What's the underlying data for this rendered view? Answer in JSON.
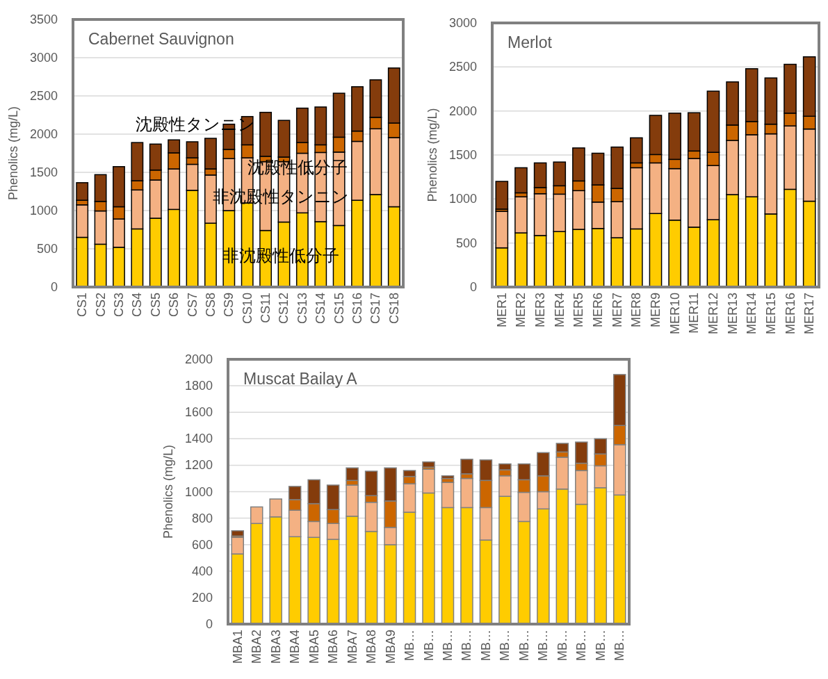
{
  "chart_data": [
    {
      "type": "bar",
      "stacked": true,
      "title": "Cabernet Sauvignon",
      "ylabel": "Phenolics (mg/L)",
      "grid": "y",
      "ylim": [
        0,
        3500
      ],
      "yticks": [
        0,
        500,
        1000,
        1500,
        2000,
        2500,
        3000,
        3500
      ],
      "categories": [
        "CS1",
        "CS2",
        "CS3",
        "CS4",
        "CS5",
        "CS6",
        "CS7",
        "CS8",
        "CS9",
        "CS10",
        "CS11",
        "CS12",
        "CS13",
        "CS14",
        "CS15",
        "CS16",
        "CS17",
        "CS18"
      ],
      "series": [
        {
          "name": "非沈殿性低分子",
          "color": "#ffcc00",
          "values": [
            650,
            560,
            520,
            760,
            900,
            1015,
            1265,
            835,
            1000,
            1100,
            740,
            850,
            970,
            855,
            805,
            1135,
            1210,
            1050
          ]
        },
        {
          "name": "非沈殿性タンニン",
          "color": "#f4b183",
          "values": [
            425,
            435,
            370,
            510,
            500,
            530,
            340,
            630,
            680,
            590,
            900,
            790,
            780,
            905,
            960,
            770,
            860,
            905
          ]
        },
        {
          "name": "沈殿性低分子",
          "color": "#cc6600",
          "values": [
            60,
            125,
            160,
            120,
            130,
            210,
            85,
            80,
            120,
            170,
            70,
            60,
            140,
            100,
            195,
            135,
            150,
            190
          ]
        },
        {
          "name": "沈殿性タンニン",
          "color": "#843c0c",
          "values": [
            230,
            350,
            525,
            500,
            340,
            170,
            210,
            400,
            330,
            370,
            575,
            480,
            450,
            495,
            575,
            580,
            490,
            720
          ]
        }
      ]
    },
    {
      "type": "bar",
      "stacked": true,
      "title": "Merlot",
      "ylabel": "Phenolics (mg/L)",
      "grid": "y",
      "ylim": [
        0,
        3000
      ],
      "yticks": [
        0,
        500,
        1000,
        1500,
        2000,
        2500,
        3000
      ],
      "categories": [
        "MER1",
        "MER2",
        "MER3",
        "MER4",
        "MER5",
        "MER6",
        "MER7",
        "MER8",
        "MER9",
        "MER10",
        "MER11",
        "MER12",
        "MER13",
        "MER14",
        "MER15",
        "MER16",
        "MER17"
      ],
      "series": [
        {
          "color": "#ffcc00",
          "values": [
            445,
            615,
            585,
            630,
            655,
            665,
            560,
            660,
            835,
            760,
            680,
            765,
            1050,
            1025,
            830,
            1110,
            975
          ]
        },
        {
          "color": "#f4b183",
          "values": [
            415,
            410,
            475,
            425,
            440,
            300,
            410,
            695,
            575,
            585,
            780,
            615,
            615,
            705,
            910,
            720,
            820
          ]
        },
        {
          "color": "#cc6600",
          "values": [
            25,
            45,
            70,
            95,
            110,
            195,
            150,
            55,
            95,
            105,
            85,
            150,
            175,
            150,
            110,
            145,
            145
          ]
        },
        {
          "color": "#843c0c",
          "values": [
            315,
            285,
            280,
            270,
            375,
            360,
            470,
            285,
            445,
            525,
            435,
            695,
            490,
            600,
            525,
            555,
            675
          ]
        }
      ]
    },
    {
      "type": "bar",
      "stacked": true,
      "title": "Muscat Bailay A",
      "ylabel": "Phenolics (mg/L)",
      "grid": "y",
      "ylim": [
        0,
        2000
      ],
      "yticks": [
        0,
        200,
        400,
        600,
        800,
        1000,
        1200,
        1400,
        1600,
        1800,
        2000
      ],
      "categories": [
        "MBA1",
        "MBA2",
        "MBA3",
        "MBA4",
        "MBA5",
        "MBA6",
        "MBA7",
        "MBA8",
        "MBA9",
        "MB…",
        "MB…",
        "MB…",
        "MB…",
        "MB…",
        "MB…",
        "MB…",
        "MB…",
        "MB…",
        "MB…",
        "MB…",
        "MB…"
      ],
      "series": [
        {
          "color": "#ffcc00",
          "values": [
            530,
            760,
            810,
            660,
            655,
            640,
            815,
            700,
            600,
            845,
            990,
            880,
            880,
            635,
            965,
            775,
            870,
            1020,
            905,
            1030,
            975
          ]
        },
        {
          "color": "#f4b183",
          "values": [
            125,
            125,
            135,
            200,
            120,
            120,
            235,
            220,
            130,
            215,
            180,
            190,
            220,
            245,
            155,
            220,
            130,
            240,
            255,
            165,
            380
          ]
        },
        {
          "color": "#cc6600",
          "values": [
            10,
            0,
            0,
            80,
            135,
            105,
            35,
            50,
            200,
            55,
            15,
            30,
            35,
            205,
            45,
            95,
            120,
            40,
            55,
            90,
            145
          ]
        },
        {
          "color": "#843c0c",
          "values": [
            40,
            0,
            0,
            100,
            180,
            185,
            95,
            185,
            250,
            45,
            40,
            20,
            110,
            155,
            45,
            120,
            175,
            65,
            160,
            115,
            385
          ]
        }
      ]
    }
  ]
}
